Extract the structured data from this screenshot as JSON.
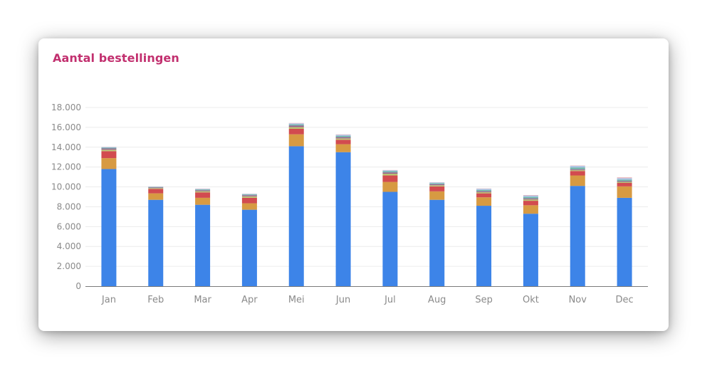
{
  "card": {
    "title": "Aantal bestellingen"
  },
  "colors": {
    "title": "#c2306f",
    "grid": "#ececec",
    "axis": "#7a7a7a",
    "label": "#8a8a8a",
    "card_bg": "#ffffff"
  },
  "chart_data": {
    "type": "bar",
    "stacked": true,
    "title": "",
    "xlabel": "",
    "ylabel": "",
    "ylim": [
      0,
      18000
    ],
    "yticks": [
      0,
      2000,
      4000,
      6000,
      8000,
      10000,
      12000,
      14000,
      16000,
      18000
    ],
    "ytick_labels": [
      "0",
      "2.000",
      "4.000",
      "6.000",
      "8.000",
      "10.000",
      "12.000",
      "14.000",
      "16.000",
      "18.000"
    ],
    "grid": true,
    "legend": "none",
    "categories": [
      "Jan",
      "Feb",
      "Mar",
      "Apr",
      "Mei",
      "Jun",
      "Jul",
      "Aug",
      "Sep",
      "Okt",
      "Nov",
      "Dec"
    ],
    "series": [
      {
        "color": "#3d84e8",
        "values": [
          11800,
          8700,
          8200,
          7700,
          14100,
          13500,
          9500,
          8700,
          8100,
          7300,
          10100,
          8900
        ]
      },
      {
        "color": "#d79a42",
        "values": [
          1100,
          650,
          700,
          650,
          1200,
          800,
          1000,
          850,
          850,
          850,
          1050,
          1150
        ]
      },
      {
        "color": "#d24b4f",
        "values": [
          700,
          450,
          550,
          550,
          550,
          450,
          650,
          500,
          400,
          450,
          450,
          350
        ]
      },
      {
        "color": "#b9c272",
        "values": [
          150,
          80,
          120,
          150,
          180,
          140,
          180,
          120,
          120,
          140,
          100,
          100
        ]
      },
      {
        "color": "#9b5f8e",
        "values": [
          120,
          60,
          90,
          110,
          150,
          120,
          130,
          100,
          90,
          100,
          80,
          80
        ]
      },
      {
        "color": "#6fb5a8",
        "values": [
          80,
          50,
          80,
          80,
          120,
          120,
          120,
          100,
          130,
          150,
          180,
          150
        ]
      },
      {
        "color": "#a9c3e6",
        "values": [
          60,
          40,
          60,
          50,
          100,
          120,
          90,
          80,
          120,
          140,
          150,
          150
        ]
      },
      {
        "color": "#e8aeb4",
        "values": [
          20,
          20,
          30,
          20,
          40,
          40,
          30,
          20,
          30,
          50,
          40,
          80
        ]
      }
    ]
  }
}
